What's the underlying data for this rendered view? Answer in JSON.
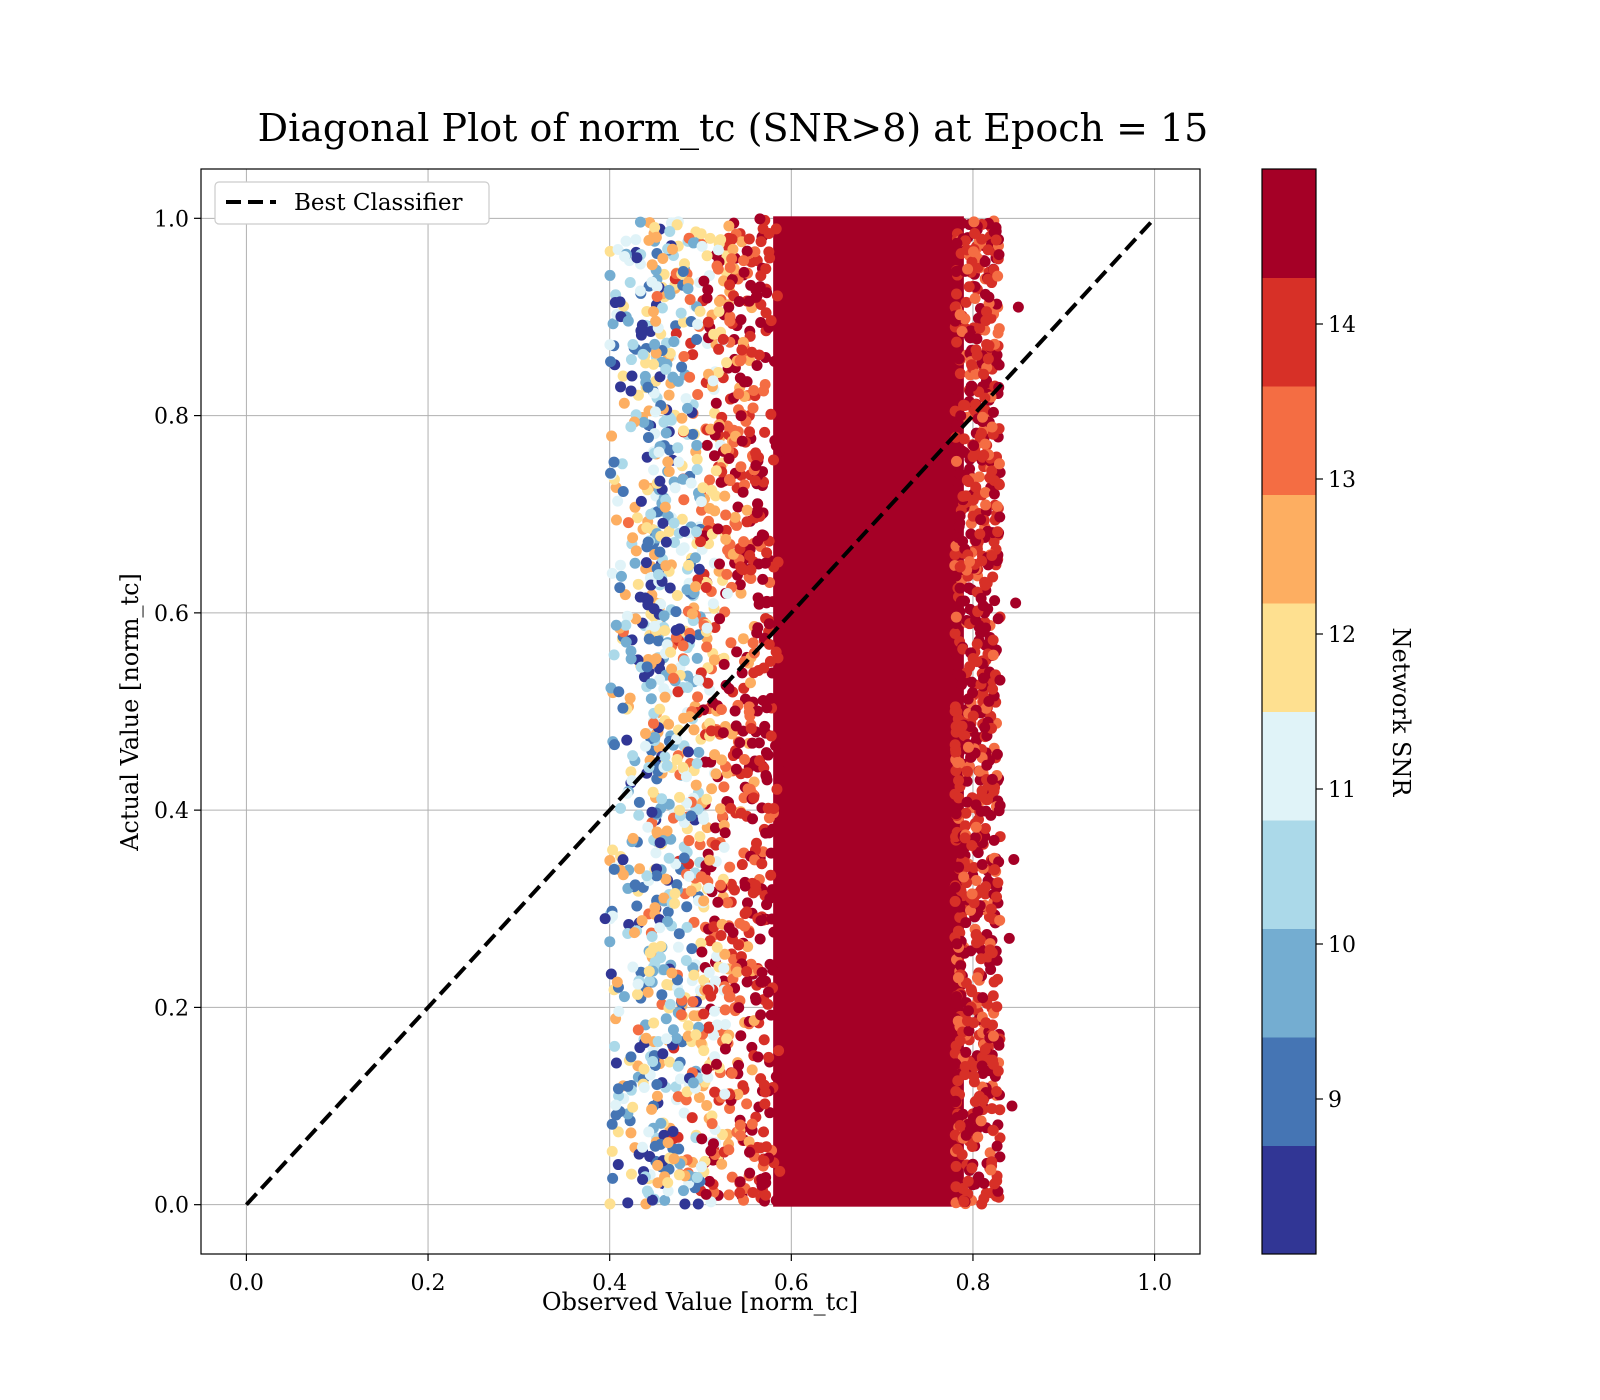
{
  "chart_data": {
    "type": "scatter",
    "title": "Diagonal Plot of norm_tc (SNR>8) at Epoch = 15",
    "xlabel": "Observed Value [norm_tc]",
    "ylabel": "Actual Value [norm_tc]",
    "xlim": [
      -0.05,
      1.05
    ],
    "ylim": [
      -0.05,
      1.05
    ],
    "xticks": [
      "0.0",
      "0.2",
      "0.4",
      "0.6",
      "0.8",
      "1.0"
    ],
    "yticks": [
      "0.0",
      "0.2",
      "0.4",
      "0.6",
      "0.8",
      "1.0"
    ],
    "grid": true,
    "legend": {
      "placement": "upper-left",
      "entries": [
        {
          "label": "Best Classifier",
          "style": "dashed",
          "color": "#000000"
        }
      ]
    },
    "reference_line": {
      "label": "Best Classifier",
      "x": [
        0.0,
        1.0
      ],
      "y": [
        0.0,
        1.0
      ]
    },
    "colorbar": {
      "label": "Network SNR",
      "range": [
        8.0,
        15.0
      ],
      "ticks": [
        "9",
        "10",
        "11",
        "12",
        "13",
        "14"
      ],
      "tick_values": [
        9,
        10,
        11,
        12,
        13,
        14
      ],
      "colors": [
        "#313695",
        "#4575b4",
        "#74add1",
        "#abd9e9",
        "#e0f3f8",
        "#fee090",
        "#fdae61",
        "#f46d43",
        "#d73027",
        "#a50026"
      ]
    },
    "scatter_description": {
      "x_range": [
        0.39,
        0.85
      ],
      "y_range": [
        0.0,
        1.0
      ],
      "dense_core_x": [
        0.58,
        0.79
      ],
      "dense_core_snr": 15,
      "low_snr_region_x": [
        0.42,
        0.52
      ]
    }
  }
}
